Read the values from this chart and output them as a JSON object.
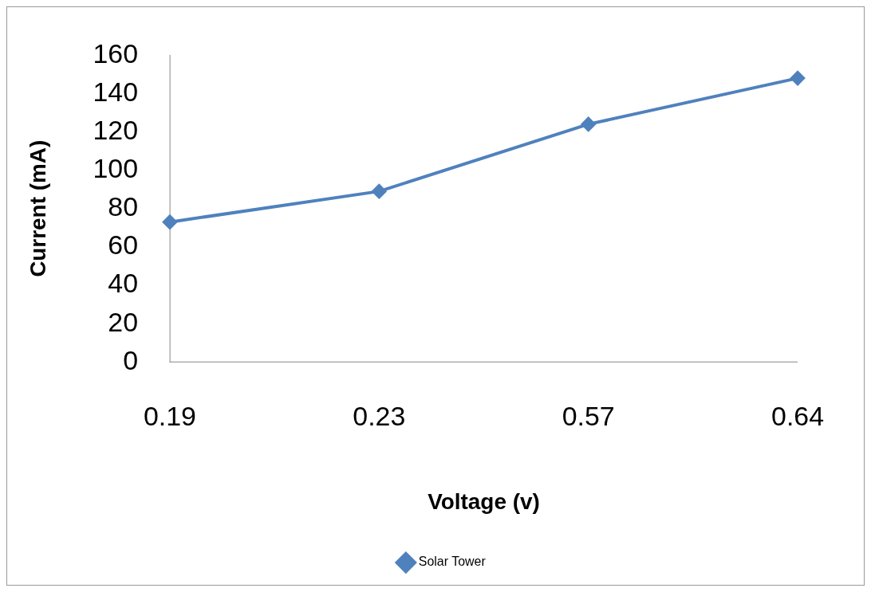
{
  "chart_data": {
    "type": "line",
    "xlabel": "Voltage (v)",
    "ylabel": "Current (mA)",
    "categories": [
      "0.19",
      "0.23",
      "0.57",
      "0.64"
    ],
    "series": [
      {
        "name": "Solar Tower",
        "color": "#4f81bd",
        "values": [
          73,
          89,
          124,
          148
        ]
      }
    ],
    "ylim": [
      0,
      160
    ],
    "yticks": [
      0,
      20,
      40,
      60,
      80,
      100,
      120,
      140,
      160
    ],
    "grid": false,
    "legend": "bottom",
    "marker": "diamond",
    "line_style": "solid"
  }
}
